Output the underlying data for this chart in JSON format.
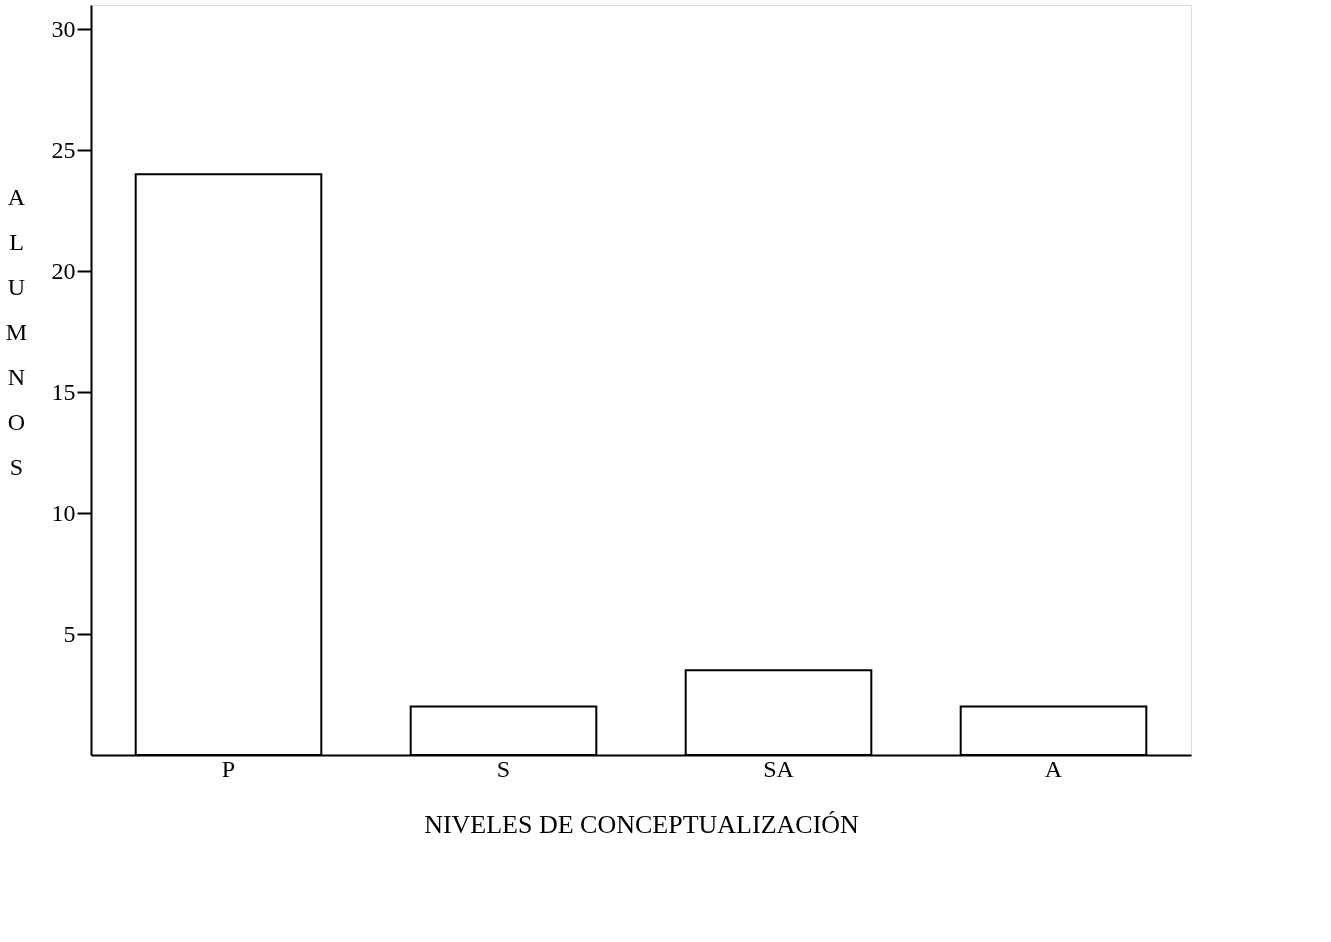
{
  "chart_data": {
    "type": "bar",
    "xlabel": "NIVELES DE CONCEPTUALIZACIÓN",
    "ylabel": "ALUMNOS",
    "categories": [
      "P",
      "S",
      "SA",
      "A"
    ],
    "values": [
      24,
      2,
      3.5,
      2
    ],
    "color": "#ffffff",
    "ylim": [
      0,
      31
    ],
    "yticks": [
      5,
      10,
      15,
      20,
      25,
      30
    ],
    "grid": false
  }
}
